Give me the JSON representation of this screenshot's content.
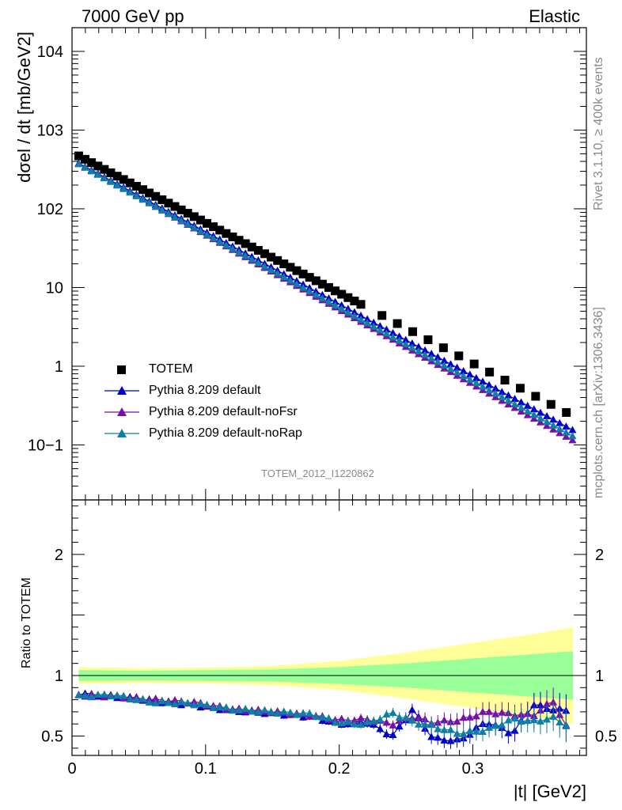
{
  "header": {
    "left_title": "7000 GeV pp",
    "right_title": "Elastic"
  },
  "side_labels": {
    "rivet": "Rivet 3.1.10, ≥ 400k events",
    "mcplots": "mcplots.cern.ch [arXiv:1306.3436]"
  },
  "analysis_label": "TOTEM_2012_I1220862",
  "colors": {
    "totem": "#000000",
    "default": "#0000cc",
    "noFsr": "#7a0fa8",
    "noRap": "#0c7fa5",
    "band_outer": "#ffff99",
    "band_inner": "#99ff99"
  },
  "chart_data": [
    {
      "type": "scatter",
      "panel": "main",
      "ylabel": "dσel / dt [mb/GeV2]",
      "yscale": "log",
      "xlim": [
        0,
        0.385
      ],
      "ylim": [
        0.02,
        20000
      ],
      "y_tick_labels": [
        "10−1",
        "1",
        "10",
        "102",
        "103",
        "104"
      ],
      "legend_position": "lower-left",
      "series": [
        {
          "name": "TOTEM",
          "marker": "square",
          "x_start": 0.005,
          "x_step": 0.0048,
          "x_end": 0.373,
          "y_at_start": 470,
          "y_at_end": 0.235,
          "note_shape": "exponential"
        },
        {
          "name": "Pythia 8.209 default",
          "marker": "triangle",
          "y_at_start": 380,
          "y_at_end": 0.155
        },
        {
          "name": "Pythia 8.209 default-noFsr",
          "marker": "triangle",
          "y_at_start": 375,
          "y_at_end": 0.115
        },
        {
          "name": "Pythia 8.209 default-noRap",
          "marker": "triangle",
          "y_at_start": 370,
          "y_at_end": 0.13
        }
      ],
      "legend": [
        "TOTEM",
        "Pythia 8.209 default",
        "Pythia 8.209 default-noFsr",
        "Pythia 8.209 default-noRap"
      ]
    },
    {
      "type": "line",
      "panel": "ratio",
      "ylabel": "Ratio to TOTEM",
      "xlabel": "|t| [GeV2]",
      "xlim": [
        0,
        0.385
      ],
      "ylim": [
        0.34,
        2.45
      ],
      "x_tick_labels": [
        "0",
        "0.1",
        "0.2",
        "0.3"
      ],
      "x_ticks": [
        0,
        0.1,
        0.2,
        0.3
      ],
      "y_ticks": [
        0.5,
        1,
        2
      ],
      "y_tick_labels": [
        "0.5",
        "1",
        "2"
      ],
      "band_x": [
        0.005,
        0.05,
        0.1,
        0.15,
        0.2,
        0.25,
        0.3,
        0.35,
        0.375
      ],
      "band_inner_half": [
        0.045,
        0.04,
        0.045,
        0.05,
        0.07,
        0.1,
        0.14,
        0.18,
        0.2
      ],
      "band_outer_half": [
        0.07,
        0.06,
        0.065,
        0.08,
        0.12,
        0.19,
        0.27,
        0.35,
        0.4
      ],
      "series": [
        {
          "name": "Pythia 8.209 default",
          "x": [
            0.005,
            0.03,
            0.06,
            0.09,
            0.12,
            0.15,
            0.18,
            0.2,
            0.22,
            0.24,
            0.255,
            0.27,
            0.29,
            0.31,
            0.33,
            0.345,
            0.36,
            0.373
          ],
          "y": [
            0.85,
            0.83,
            0.79,
            0.76,
            0.71,
            0.69,
            0.66,
            0.6,
            0.62,
            0.5,
            0.72,
            0.48,
            0.46,
            0.62,
            0.52,
            0.76,
            0.72,
            0.71
          ],
          "err": [
            0.015,
            0.015,
            0.015,
            0.02,
            0.02,
            0.025,
            0.03,
            0.03,
            0.035,
            0.04,
            0.05,
            0.06,
            0.07,
            0.08,
            0.09,
            0.1,
            0.12,
            0.14
          ]
        },
        {
          "name": "Pythia 8.209 default-noFsr",
          "x": [
            0.005,
            0.03,
            0.06,
            0.09,
            0.12,
            0.15,
            0.18,
            0.2,
            0.22,
            0.24,
            0.255,
            0.27,
            0.29,
            0.31,
            0.33,
            0.345,
            0.36,
            0.373
          ],
          "y": [
            0.84,
            0.83,
            0.8,
            0.78,
            0.72,
            0.7,
            0.67,
            0.63,
            0.64,
            0.6,
            0.66,
            0.61,
            0.63,
            0.7,
            0.68,
            0.67,
            0.79,
            0.51
          ],
          "err": [
            0.015,
            0.015,
            0.015,
            0.02,
            0.02,
            0.025,
            0.03,
            0.03,
            0.035,
            0.04,
            0.05,
            0.06,
            0.07,
            0.08,
            0.09,
            0.1,
            0.12,
            0.14
          ]
        },
        {
          "name": "Pythia 8.209 default-noRap",
          "x": [
            0.005,
            0.03,
            0.06,
            0.09,
            0.12,
            0.15,
            0.18,
            0.2,
            0.22,
            0.24,
            0.255,
            0.27,
            0.29,
            0.31,
            0.33,
            0.345,
            0.36,
            0.373
          ],
          "y": [
            0.83,
            0.84,
            0.78,
            0.77,
            0.72,
            0.7,
            0.68,
            0.61,
            0.6,
            0.69,
            0.62,
            0.58,
            0.52,
            0.55,
            0.64,
            0.62,
            0.65,
            0.57
          ],
          "err": [
            0.015,
            0.015,
            0.015,
            0.02,
            0.02,
            0.025,
            0.03,
            0.03,
            0.035,
            0.04,
            0.05,
            0.06,
            0.07,
            0.08,
            0.09,
            0.1,
            0.12,
            0.14
          ]
        }
      ]
    }
  ]
}
